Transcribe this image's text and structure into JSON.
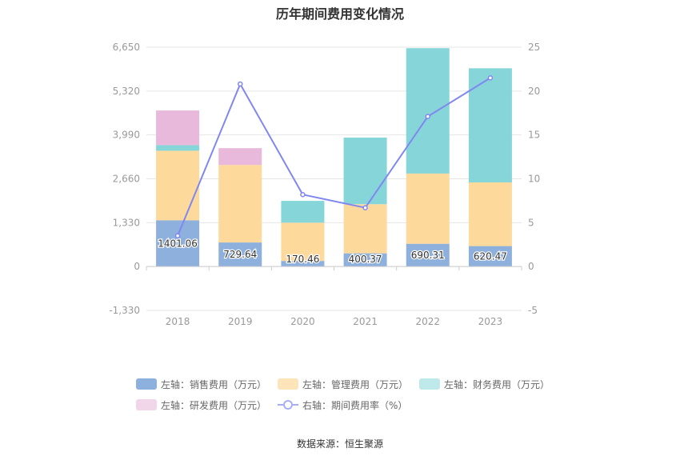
{
  "title": "历年期间费用变化情况",
  "source": "数据来源：恒生聚源",
  "chart_data": {
    "type": "bar",
    "stacked": true,
    "categories": [
      "2018",
      "2019",
      "2020",
      "2021",
      "2022",
      "2023"
    ],
    "left_axis": {
      "ticks": [
        "6,650",
        "5,320",
        "3,990",
        "2,660",
        "1,330",
        "0",
        "-1,330"
      ],
      "ylim": [
        -1330,
        6650
      ]
    },
    "right_axis": {
      "ticks": [
        "25",
        "20",
        "15",
        "10",
        "5",
        "0",
        "-5"
      ],
      "ylim": [
        -5,
        25
      ]
    },
    "series": [
      {
        "name": "左轴：销售费用（万元）",
        "type": "bar",
        "axis": "left",
        "color": "#8eb0dd",
        "values": [
          1401.06,
          729.64,
          170.46,
          400.37,
          690.31,
          620.47
        ],
        "labels": [
          "1401.06",
          "729.64",
          "170.46",
          "400.37",
          "690.31",
          "620.47"
        ]
      },
      {
        "name": "左轴：管理费用（万元）",
        "type": "bar",
        "axis": "left",
        "color": "#fdd99b",
        "values": [
          2110,
          2350,
          1160,
          1490,
          2130,
          1930
        ]
      },
      {
        "name": "左轴：财务费用（万元）",
        "type": "bar",
        "axis": "left",
        "color": "#86d5d9",
        "values": [
          170,
          0,
          660,
          2020,
          3800,
          3460
        ]
      },
      {
        "name": "左轴：研发费用（万元）",
        "type": "bar",
        "axis": "left",
        "color": "#e8b9da",
        "values": [
          1050,
          510,
          0,
          0,
          0,
          0
        ]
      },
      {
        "name": "右轴：期间费用率（%）",
        "type": "line",
        "axis": "right",
        "color": "#8088f0",
        "values": [
          3.5,
          20.8,
          8.2,
          6.7,
          17.1,
          21.5
        ]
      }
    ]
  }
}
